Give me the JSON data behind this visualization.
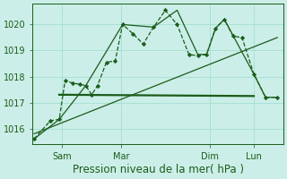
{
  "bg_color": "#cceee8",
  "grid_color": "#99ddcc",
  "line_color": "#1a5c1a",
  "ylim": [
    1015.4,
    1020.8
  ],
  "yticks": [
    1016,
    1017,
    1018,
    1019,
    1020
  ],
  "xlabel": "Pression niveau de la mer( hPa )",
  "xlabel_fontsize": 8.5,
  "tick_fontsize": 7,
  "xtick_labels": [
    "Sam",
    "Mar",
    "Dim",
    "Lun"
  ],
  "xlim": [
    0,
    8.5
  ],
  "xtick_positions": [
    1.0,
    3.0,
    6.0,
    7.5
  ],
  "line1_jagged": {
    "x": [
      0.05,
      0.6,
      0.9,
      1.1,
      1.35,
      1.6,
      1.8,
      2.0,
      2.2,
      2.5,
      2.8,
      3.05,
      3.4,
      3.75,
      4.1,
      4.5,
      4.9,
      5.3,
      5.6,
      5.9,
      6.2,
      6.5,
      6.8,
      7.1,
      7.5,
      7.9,
      8.3
    ],
    "y": [
      1015.6,
      1016.3,
      1016.35,
      1017.85,
      1017.75,
      1017.7,
      1017.65,
      1017.3,
      1017.65,
      1018.55,
      1018.6,
      1020.0,
      1019.65,
      1019.25,
      1019.9,
      1020.55,
      1020.0,
      1018.85,
      1018.8,
      1018.85,
      1019.85,
      1020.2,
      1019.55,
      1019.5,
      1018.1,
      1017.2,
      1017.2
    ],
    "linewidth": 0.9,
    "linestyle": "--",
    "marker": "D",
    "markersize": 2.2
  },
  "line2_smooth": {
    "x": [
      0.05,
      0.9,
      1.8,
      3.05,
      4.1,
      4.9,
      5.6,
      5.9,
      6.2,
      6.5,
      7.5,
      7.9,
      8.3
    ],
    "y": [
      1015.6,
      1016.35,
      1017.65,
      1020.0,
      1019.9,
      1020.55,
      1018.85,
      1018.85,
      1019.85,
      1020.2,
      1018.1,
      1017.2,
      1017.2
    ],
    "linewidth": 0.9,
    "linestyle": "-",
    "marker": null
  },
  "line3_flat": {
    "x": [
      0.9,
      7.5
    ],
    "y": [
      1017.3,
      1017.25
    ],
    "linewidth": 1.6,
    "linestyle": "-",
    "marker": null
  },
  "line4_rising": {
    "x": [
      0.05,
      8.3
    ],
    "y": [
      1015.8,
      1019.5
    ],
    "linewidth": 0.9,
    "linestyle": "-",
    "marker": null
  }
}
